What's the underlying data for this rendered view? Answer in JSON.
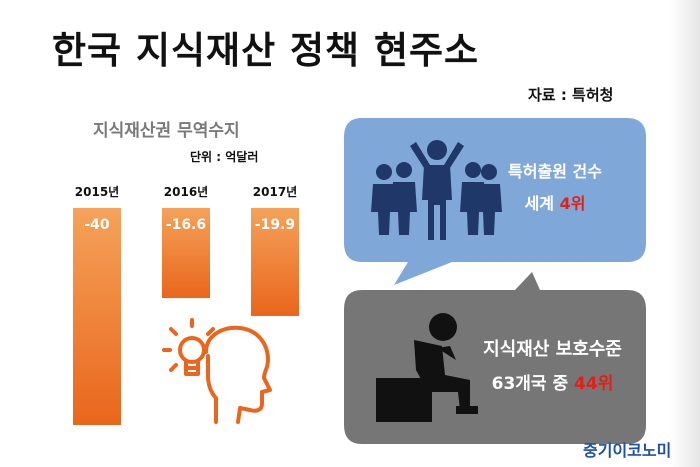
{
  "title": "한국 지식재산 정책 현주소",
  "source": "자료 : 특허청",
  "brand": "중기이코노미",
  "colors": {
    "bar_top": "#f5a25a",
    "bar_bottom": "#e9661c",
    "bubble_top": "#7fa8d8",
    "bubble_bottom": "#767676",
    "icon_orange": "#e9661c",
    "icon_navy": "#1f3869",
    "highlight": "#e0201b",
    "brand": "#1f4fa8"
  },
  "chart_data": {
    "type": "bar",
    "title": "지식재산권 무역수지",
    "unit": "단위 : 억달러",
    "categories": [
      "2015년",
      "2016년",
      "2017년"
    ],
    "values": [
      -40,
      -16.6,
      -19.9
    ],
    "value_labels": [
      "-40",
      "-16.6",
      "-19.9"
    ],
    "ylim": [
      -40,
      0
    ],
    "orientation": "downward-from-top",
    "grid": false
  },
  "icons": {
    "thinking_head": "head-with-lightbulb-icon",
    "group": "cheering-people-icon",
    "thinker": "sitting-thinker-icon"
  },
  "stat_patent": {
    "line1": "특허출원 건수",
    "line2_prefix": "세계 ",
    "line2_highlight": "4위"
  },
  "stat_protection": {
    "line1": "지식재산 보호수준",
    "line2_prefix": "63개국 중 ",
    "line2_highlight": "44위"
  }
}
